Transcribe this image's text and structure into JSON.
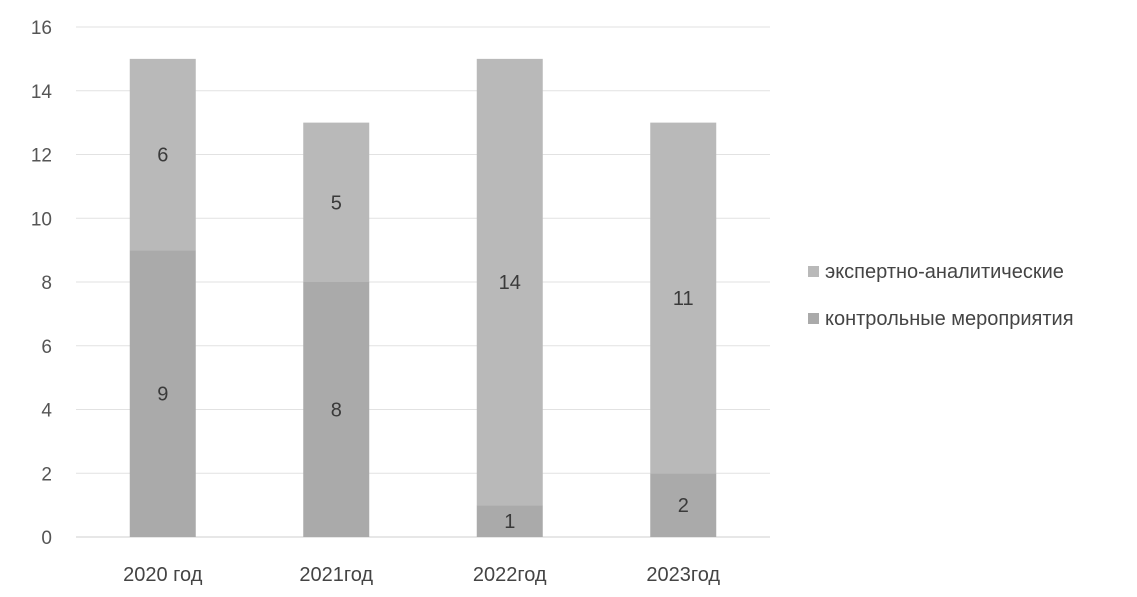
{
  "chart_data": {
    "type": "bar",
    "stacked": true,
    "categories": [
      "2020 год",
      "2021год",
      "2022год",
      "2023год"
    ],
    "series": [
      {
        "name": "контрольные мероприятия",
        "values": [
          9,
          8,
          1,
          2
        ],
        "color": "#aaaaaa"
      },
      {
        "name": "экспертно-аналитические",
        "values": [
          6,
          5,
          14,
          11
        ],
        "color": "#b9b9b9"
      }
    ],
    "y_ticks": [
      "0",
      "2",
      "4",
      "6",
      "8",
      "10",
      "12",
      "14",
      "16"
    ],
    "ylim": [
      0,
      16
    ],
    "grid": true,
    "legend_position": "right",
    "legend_order": [
      "экспертно-аналитические",
      "контрольные мероприятия"
    ]
  }
}
